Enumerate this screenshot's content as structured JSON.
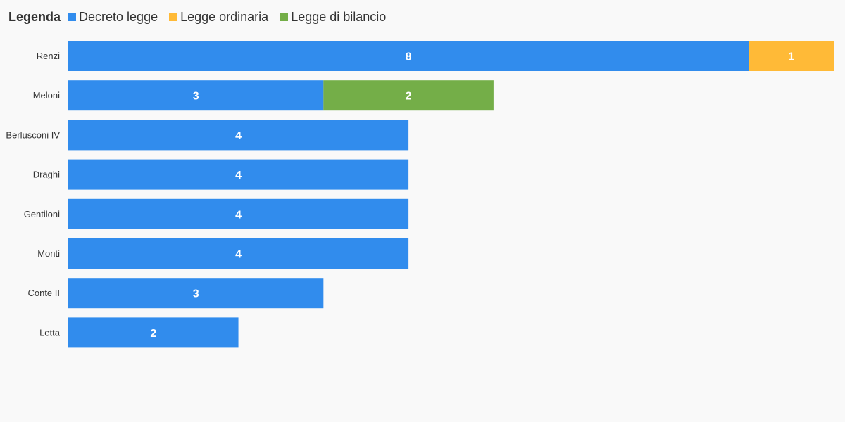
{
  "legend": {
    "title": "Legenda",
    "items": [
      {
        "label": "Decreto legge",
        "color": "#318ced"
      },
      {
        "label": "Legge ordinaria",
        "color": "#ffba37"
      },
      {
        "label": "Legge di bilancio",
        "color": "#74ae48"
      }
    ]
  },
  "chart_data": {
    "type": "bar",
    "orientation": "horizontal",
    "stacked": true,
    "categories": [
      "Renzi",
      "Meloni",
      "Berlusconi IV",
      "Draghi",
      "Gentiloni",
      "Monti",
      "Conte II",
      "Letta"
    ],
    "series": [
      {
        "name": "Decreto legge",
        "color": "#318ced",
        "values": [
          8,
          3,
          4,
          4,
          4,
          4,
          3,
          2
        ]
      },
      {
        "name": "Legge ordinaria",
        "color": "#ffba37",
        "values": [
          1,
          0,
          0,
          0,
          0,
          0,
          0,
          0
        ]
      },
      {
        "name": "Legge di bilancio",
        "color": "#74ae48",
        "values": [
          0,
          2,
          0,
          0,
          0,
          0,
          0,
          0
        ]
      }
    ],
    "xlim": [
      0,
      9
    ],
    "grid": false,
    "legend_position": "top-left"
  }
}
